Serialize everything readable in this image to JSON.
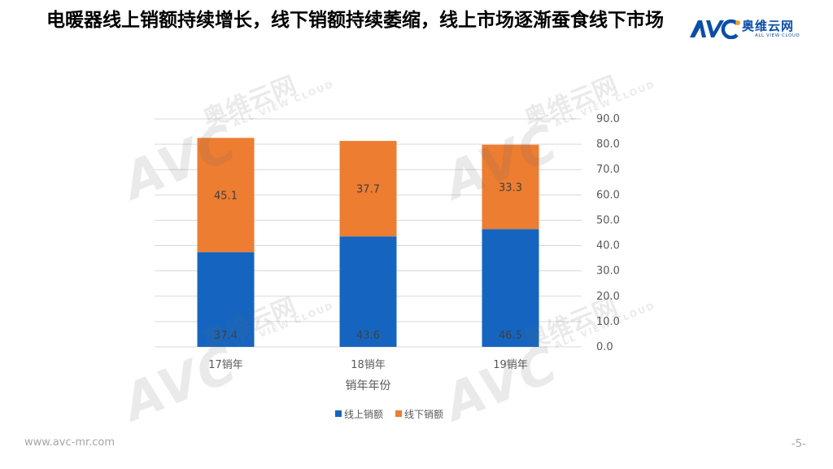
{
  "header": {
    "title": "电暖器线上销额持续增长，线下销额持续萎缩，线上市场逐渐蚕食线下市场",
    "logo_name": "奥维云网",
    "logo_subtitle": "ALL VIEW CLOUD"
  },
  "footer": {
    "url": "www.avc-mr.com",
    "page_number": "-5-"
  },
  "watermark": {
    "brand": "AVC",
    "name_cn": "奥维云网",
    "name_en": "ALL VIEW CLOUD"
  },
  "colors": {
    "online": "#1565c0",
    "offline": "#ed7d31",
    "brand": "#0a4ea8",
    "grid": "#d9d9d9",
    "axis_text": "#595959"
  },
  "chart_data": {
    "type": "bar",
    "stacked": true,
    "categories": [
      "17销年",
      "18销年",
      "19销年"
    ],
    "series": [
      {
        "name": "线上销额",
        "values": [
          37.4,
          43.6,
          46.5
        ],
        "color": "#1565c0"
      },
      {
        "name": "线下销额",
        "values": [
          45.1,
          37.7,
          33.3
        ],
        "color": "#ed7d31"
      }
    ],
    "xlabel": "销年年份",
    "ylabel": "",
    "ylim": [
      0,
      90
    ],
    "yticks": [
      "0.0",
      "10.0",
      "20.0",
      "30.0",
      "40.0",
      "50.0",
      "60.0",
      "70.0",
      "80.0",
      "90.0"
    ],
    "y_axis_side": "right",
    "grid": true,
    "legend": "bottom"
  }
}
